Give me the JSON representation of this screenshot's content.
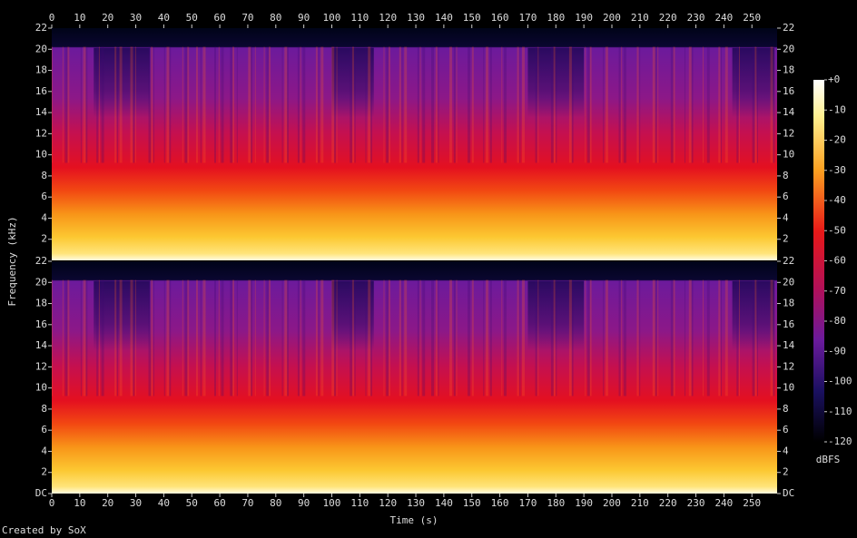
{
  "chart_data": [
    {
      "type": "spectrogram",
      "ylabel": "Frequency (kHz)",
      "xlim": [
        0,
        259
      ],
      "xticks": [
        0,
        10,
        20,
        30,
        40,
        50,
        60,
        70,
        80,
        90,
        100,
        110,
        120,
        130,
        140,
        150,
        160,
        170,
        180,
        190,
        200,
        210,
        220,
        230,
        240,
        250
      ],
      "ylim": [
        0,
        22
      ],
      "yticks": [
        2,
        4,
        6,
        8,
        10,
        12,
        14,
        16,
        18,
        20,
        22
      ]
    },
    {
      "type": "spectrogram",
      "xlabel": "Time (s)",
      "xlim": [
        0,
        259
      ],
      "xticks": [
        0,
        10,
        20,
        30,
        40,
        50,
        60,
        70,
        80,
        90,
        100,
        110,
        120,
        130,
        140,
        150,
        160,
        170,
        180,
        190,
        200,
        210,
        220,
        230,
        240,
        250
      ],
      "ylim": [
        0,
        22
      ],
      "yticks": [
        {
          "value": 0,
          "label": "DC"
        },
        2,
        4,
        6,
        8,
        10,
        12,
        14,
        16,
        18,
        20,
        22
      ]
    },
    {
      "type": "colorbar",
      "label": "dBFS",
      "lim": [
        -120,
        0
      ],
      "ticks": [
        {
          "value": 0,
          "label": "+0"
        },
        -10,
        -20,
        -30,
        -40,
        -50,
        -60,
        -70,
        -80,
        -90,
        -100,
        -110,
        -120
      ]
    }
  ],
  "footer": "Created by SoX"
}
